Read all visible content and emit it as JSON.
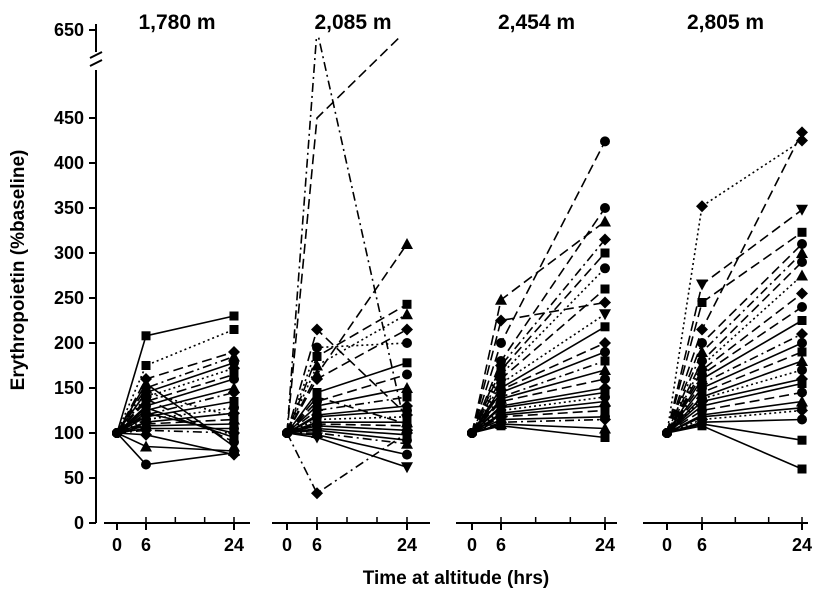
{
  "chart_data": {
    "type": "line",
    "ylabel": "Erythropoietin (%baseline)",
    "xlabel": "Time at altitude (hrs)",
    "y_ticks": [
      "0",
      "50",
      "100",
      "150",
      "200",
      "250",
      "300",
      "350",
      "400",
      "450",
      "650"
    ],
    "x_ticks": [
      "0",
      "6",
      "24"
    ],
    "x": [
      0,
      6,
      24
    ],
    "ylim": [
      0,
      460
    ],
    "y_axis_break": {
      "lower": 450,
      "upper": 650
    },
    "colors": {
      "ink": "#000000",
      "background": "#ffffff"
    },
    "panels": [
      {
        "title": "1,780 m",
        "series": [
          {
            "values": [
              100,
              208,
              230
            ],
            "marker": "square",
            "dash": "solid"
          },
          {
            "values": [
              100,
              175,
              215
            ],
            "marker": "square",
            "dash": "dotted"
          },
          {
            "values": [
              100,
              160,
              190
            ],
            "marker": "diamond",
            "dash": "dashed"
          },
          {
            "values": [
              100,
              150,
              185
            ],
            "marker": "triangle",
            "dash": "dashdot"
          },
          {
            "values": [
              100,
              145,
              178
            ],
            "marker": "circle",
            "dash": "solid"
          },
          {
            "values": [
              100,
              140,
              172
            ],
            "marker": "diamond",
            "dash": "dotted"
          },
          {
            "values": [
              100,
              135,
              165
            ],
            "marker": "square",
            "dash": "dashed"
          },
          {
            "values": [
              100,
              130,
              160
            ],
            "marker": "circle",
            "dash": "solid"
          },
          {
            "values": [
              100,
              125,
              150
            ],
            "marker": "triangle",
            "dash": "solid"
          },
          {
            "values": [
              100,
              120,
              145
            ],
            "marker": "diamond",
            "dash": "dashdot"
          },
          {
            "values": [
              100,
              118,
              135
            ],
            "marker": "square",
            "dash": "solid"
          },
          {
            "values": [
              100,
              115,
              128
            ],
            "marker": "circle",
            "dash": "dotted"
          },
          {
            "values": [
              100,
              112,
              122
            ],
            "marker": "diamond",
            "dash": "solid"
          },
          {
            "values": [
              100,
              110,
              115
            ],
            "marker": "triangle",
            "dash": "dashed"
          },
          {
            "values": [
              100,
              108,
              110
            ],
            "marker": "square",
            "dash": "solid"
          },
          {
            "values": [
              100,
              105,
              105
            ],
            "marker": "circle",
            "dash": "solid"
          },
          {
            "values": [
              100,
              103,
              100
            ],
            "marker": "diamond",
            "dash": "dashdot"
          },
          {
            "values": [
              100,
              128,
              95
            ],
            "marker": "square",
            "dash": "solid"
          },
          {
            "values": [
              100,
              138,
              90
            ],
            "marker": "circle",
            "dash": "dashed"
          },
          {
            "values": [
              100,
              155,
              85
            ],
            "marker": "triangle",
            "dash": "solid"
          },
          {
            "values": [
              100,
              85,
              80
            ],
            "marker": "triangle",
            "dash": "solid"
          },
          {
            "values": [
              100,
              65,
              78
            ],
            "marker": "circle",
            "dash": "solid"
          },
          {
            "values": [
              100,
              98,
              76
            ],
            "marker": "diamond",
            "dash": "solid"
          },
          {
            "values": [
              100,
              145,
              118
            ],
            "marker": "square",
            "dash": "dotted"
          },
          {
            "values": [
              100,
              122,
              100
            ],
            "marker": "circle",
            "dash": "solid"
          }
        ]
      },
      {
        "title": "2,085 m",
        "series": [
          {
            "values": [
              100,
              650,
              98
            ],
            "marker": "triangle-down",
            "dash": "dashdot"
          },
          {
            "values": [
              100,
              450,
              650
            ],
            "marker": "none",
            "dash": "dashed"
          },
          {
            "values": [
              100,
              165,
              310
            ],
            "marker": "triangle",
            "dash": "dashed"
          },
          {
            "values": [
              100,
              185,
              243
            ],
            "marker": "square",
            "dash": "dashed"
          },
          {
            "values": [
              100,
              175,
              232
            ],
            "marker": "triangle",
            "dash": "dotted"
          },
          {
            "values": [
              100,
              160,
              215
            ],
            "marker": "diamond",
            "dash": "dashed"
          },
          {
            "values": [
              100,
              215,
              120
            ],
            "marker": "diamond",
            "dash": "dashed"
          },
          {
            "values": [
              100,
              195,
              200
            ],
            "marker": "circle",
            "dash": "dotted"
          },
          {
            "values": [
              100,
              145,
              178
            ],
            "marker": "square",
            "dash": "solid"
          },
          {
            "values": [
              100,
              135,
              165
            ],
            "marker": "circle",
            "dash": "dashed"
          },
          {
            "values": [
              100,
              130,
              150
            ],
            "marker": "triangle",
            "dash": "solid"
          },
          {
            "values": [
              100,
              125,
              140
            ],
            "marker": "square",
            "dash": "dashdot"
          },
          {
            "values": [
              100,
              120,
              130
            ],
            "marker": "diamond",
            "dash": "solid"
          },
          {
            "values": [
              100,
              118,
              125
            ],
            "marker": "circle",
            "dash": "solid"
          },
          {
            "values": [
              100,
              115,
              118
            ],
            "marker": "square",
            "dash": "dotted"
          },
          {
            "values": [
              100,
              112,
              112
            ],
            "marker": "triangle",
            "dash": "solid"
          },
          {
            "values": [
              100,
              110,
              108
            ],
            "marker": "circle",
            "dash": "dashed"
          },
          {
            "values": [
              100,
              108,
              103
            ],
            "marker": "diamond",
            "dash": "solid"
          },
          {
            "values": [
              100,
              105,
              98
            ],
            "marker": "square",
            "dash": "solid"
          },
          {
            "values": [
              100,
              103,
              92
            ],
            "marker": "circle",
            "dash": "solid"
          },
          {
            "values": [
              100,
              100,
              88
            ],
            "marker": "triangle",
            "dash": "dashdot"
          },
          {
            "values": [
              100,
              98,
              76
            ],
            "marker": "circle",
            "dash": "solid"
          },
          {
            "values": [
              100,
              95,
              62
            ],
            "marker": "triangle-down",
            "dash": "solid"
          },
          {
            "values": [
              100,
              33,
              100
            ],
            "marker": "diamond",
            "dash": "dashdot"
          },
          {
            "values": [
              100,
              140,
              110
            ],
            "marker": "square",
            "dash": "dashed"
          }
        ]
      },
      {
        "title": "2,454 m",
        "series": [
          {
            "values": [
              100,
              200,
              424
            ],
            "marker": "circle",
            "dash": "dashed"
          },
          {
            "values": [
              100,
              180,
              350
            ],
            "marker": "circle",
            "dash": "dashed"
          },
          {
            "values": [
              100,
              248,
              335
            ],
            "marker": "triangle",
            "dash": "dashed"
          },
          {
            "values": [
              100,
              175,
              315
            ],
            "marker": "diamond",
            "dash": "dashdot"
          },
          {
            "values": [
              100,
              170,
              300
            ],
            "marker": "square",
            "dash": "dashed"
          },
          {
            "values": [
              100,
              165,
              283
            ],
            "marker": "circle",
            "dash": "dotted"
          },
          {
            "values": [
              100,
              160,
              260
            ],
            "marker": "square",
            "dash": "dashed"
          },
          {
            "values": [
              100,
              225,
              245
            ],
            "marker": "diamond",
            "dash": "dashed"
          },
          {
            "values": [
              100,
              155,
              232
            ],
            "marker": "triangle-down",
            "dash": "dotted"
          },
          {
            "values": [
              100,
              150,
              218
            ],
            "marker": "square",
            "dash": "solid"
          },
          {
            "values": [
              100,
              148,
              200
            ],
            "marker": "diamond",
            "dash": "dashed"
          },
          {
            "values": [
              100,
              145,
              190
            ],
            "marker": "circle",
            "dash": "solid"
          },
          {
            "values": [
              100,
              140,
              180
            ],
            "marker": "square",
            "dash": "dashdot"
          },
          {
            "values": [
              100,
              138,
              170
            ],
            "marker": "triangle",
            "dash": "solid"
          },
          {
            "values": [
              100,
              135,
              160
            ],
            "marker": "circle",
            "dash": "dashed"
          },
          {
            "values": [
              100,
              130,
              150
            ],
            "marker": "diamond",
            "dash": "solid"
          },
          {
            "values": [
              100,
              128,
              145
            ],
            "marker": "square",
            "dash": "solid"
          },
          {
            "values": [
              100,
              125,
              140
            ],
            "marker": "circle",
            "dash": "dotted"
          },
          {
            "values": [
              100,
              122,
              135
            ],
            "marker": "triangle",
            "dash": "solid"
          },
          {
            "values": [
              100,
              120,
              130
            ],
            "marker": "diamond",
            "dash": "solid"
          },
          {
            "values": [
              100,
              118,
              125
            ],
            "marker": "square",
            "dash": "dashed"
          },
          {
            "values": [
              100,
              115,
              118
            ],
            "marker": "circle",
            "dash": "solid"
          },
          {
            "values": [
              100,
              112,
              115
            ],
            "marker": "diamond",
            "dash": "dashdot"
          },
          {
            "values": [
              100,
              110,
              105
            ],
            "marker": "triangle",
            "dash": "solid"
          },
          {
            "values": [
              100,
              108,
              95
            ],
            "marker": "square",
            "dash": "solid"
          }
        ]
      },
      {
        "title": "2,805 m",
        "series": [
          {
            "values": [
              100,
              215,
              434
            ],
            "marker": "diamond",
            "dash": "dashed"
          },
          {
            "values": [
              100,
              352,
              425
            ],
            "marker": "diamond",
            "dash": "dotted"
          },
          {
            "values": [
              100,
              265,
              348
            ],
            "marker": "triangle-down",
            "dash": "dashed"
          },
          {
            "values": [
              100,
              245,
              323
            ],
            "marker": "square",
            "dash": "dashed"
          },
          {
            "values": [
              100,
              200,
              310
            ],
            "marker": "circle",
            "dash": "dashed"
          },
          {
            "values": [
              100,
              190,
              300
            ],
            "marker": "triangle",
            "dash": "dashdot"
          },
          {
            "values": [
              100,
              180,
              290
            ],
            "marker": "circle",
            "dash": "dashed"
          },
          {
            "values": [
              100,
              175,
              275
            ],
            "marker": "triangle",
            "dash": "dotted"
          },
          {
            "values": [
              100,
              170,
              255
            ],
            "marker": "diamond",
            "dash": "dashed"
          },
          {
            "values": [
              100,
              165,
              240
            ],
            "marker": "circle",
            "dash": "dashed"
          },
          {
            "values": [
              100,
              160,
              225
            ],
            "marker": "square",
            "dash": "solid"
          },
          {
            "values": [
              100,
              155,
              210
            ],
            "marker": "diamond",
            "dash": "dashdot"
          },
          {
            "values": [
              100,
              150,
              200
            ],
            "marker": "circle",
            "dash": "solid"
          },
          {
            "values": [
              100,
              145,
              190
            ],
            "marker": "square",
            "dash": "dashed"
          },
          {
            "values": [
              100,
              140,
              180
            ],
            "marker": "triangle",
            "dash": "solid"
          },
          {
            "values": [
              100,
              138,
              170
            ],
            "marker": "circle",
            "dash": "dotted"
          },
          {
            "values": [
              100,
              135,
              160
            ],
            "marker": "diamond",
            "dash": "solid"
          },
          {
            "values": [
              100,
              130,
              155
            ],
            "marker": "square",
            "dash": "solid"
          },
          {
            "values": [
              100,
              125,
              145
            ],
            "marker": "circle",
            "dash": "dashed"
          },
          {
            "values": [
              100,
              120,
              135
            ],
            "marker": "triangle",
            "dash": "solid"
          },
          {
            "values": [
              100,
              118,
              128
            ],
            "marker": "square",
            "dash": "solid"
          },
          {
            "values": [
              100,
              115,
              125
            ],
            "marker": "diamond",
            "dash": "dotted"
          },
          {
            "values": [
              100,
              112,
              115
            ],
            "marker": "circle",
            "dash": "solid"
          },
          {
            "values": [
              100,
              110,
              92
            ],
            "marker": "square",
            "dash": "solid"
          },
          {
            "values": [
              100,
              108,
              60
            ],
            "marker": "square",
            "dash": "solid"
          }
        ]
      }
    ]
  }
}
